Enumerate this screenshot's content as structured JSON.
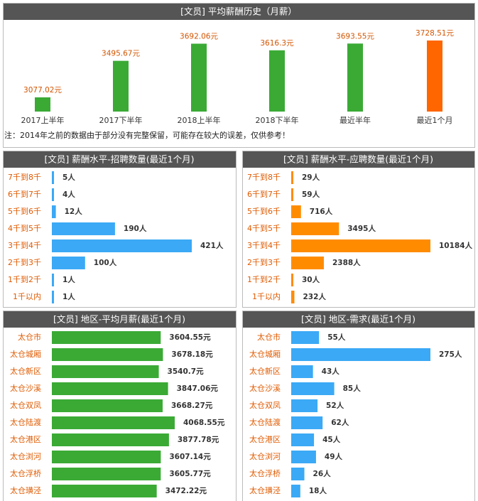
{
  "chart_data": [
    {
      "type": "bar",
      "title": "[文员] 平均薪酬历史（月薪）",
      "categories": [
        "2017上半年",
        "2017下半年",
        "2018上半年",
        "2018下半年",
        "最近半年",
        "最近1个月"
      ],
      "values": [
        3077.02,
        3495.67,
        3692.06,
        3616.3,
        3693.55,
        3728.51
      ],
      "value_labels": [
        "3077.02元",
        "3495.67元",
        "3692.06元",
        "3616.3元",
        "3693.55元",
        "3728.51元"
      ],
      "colors": [
        "#3aaa35",
        "#3aaa35",
        "#3aaa35",
        "#3aaa35",
        "#3aaa35",
        "#ff6600"
      ],
      "note": "注：2014年之前的数据由于部分没有完整保留，可能存在较大的误差，仅供参考！"
    },
    {
      "type": "hbar",
      "title": "[文员] 薪酬水平-招聘数量(最近1个月)",
      "categories": [
        "7千到8千",
        "6千到7千",
        "5千到6千",
        "4千到5千",
        "3千到4千",
        "2千到3千",
        "1千到2千",
        "1千以内"
      ],
      "values": [
        5,
        4,
        12,
        190,
        421,
        100,
        1,
        1
      ],
      "value_labels": [
        "5人",
        "4人",
        "12人",
        "190人",
        "421人",
        "100人",
        "1人",
        "1人"
      ],
      "color": "#3ba9f5"
    },
    {
      "type": "hbar",
      "title": "[文员] 薪酬水平-应聘数量(最近1个月)",
      "categories": [
        "7千到8千",
        "6千到7千",
        "5千到6千",
        "4千到5千",
        "3千到4千",
        "2千到3千",
        "1千到2千",
        "1千以内"
      ],
      "values": [
        29,
        59,
        716,
        3495,
        10184,
        2388,
        30,
        232
      ],
      "value_labels": [
        "29人",
        "59人",
        "716人",
        "3495人",
        "10184人",
        "2388人",
        "30人",
        "232人"
      ],
      "color": "#ff8c00"
    },
    {
      "type": "hbar",
      "title": "[文员] 地区-平均月薪(最近1个月)",
      "categories": [
        "太仓市",
        "太仓城厢",
        "太仓新区",
        "太仓沙溪",
        "太仓双凤",
        "太仓陆渡",
        "太仓港区",
        "太仓浏河",
        "太仓浮桥",
        "太仓璜泾"
      ],
      "values": [
        3604.55,
        3678.18,
        3540.7,
        3847.06,
        3668.27,
        4068.55,
        3877.78,
        3607.14,
        3605.77,
        3472.22
      ],
      "value_labels": [
        "3604.55元",
        "3678.18元",
        "3540.7元",
        "3847.06元",
        "3668.27元",
        "4068.55元",
        "3877.78元",
        "3607.14元",
        "3605.77元",
        "3472.22元"
      ],
      "color": "#3aaa35"
    },
    {
      "type": "hbar",
      "title": "[文员] 地区-需求(最近1个月)",
      "categories": [
        "太仓市",
        "太仓城厢",
        "太仓新区",
        "太仓沙溪",
        "太仓双凤",
        "太仓陆渡",
        "太仓港区",
        "太仓浏河",
        "太仓浮桥",
        "太仓璜泾"
      ],
      "values": [
        55,
        275,
        43,
        85,
        52,
        62,
        45,
        49,
        26,
        18
      ],
      "value_labels": [
        "55人",
        "275人",
        "43人",
        "85人",
        "52人",
        "62人",
        "45人",
        "49人",
        "26人",
        "18人"
      ],
      "color": "#3ba9f5"
    }
  ]
}
